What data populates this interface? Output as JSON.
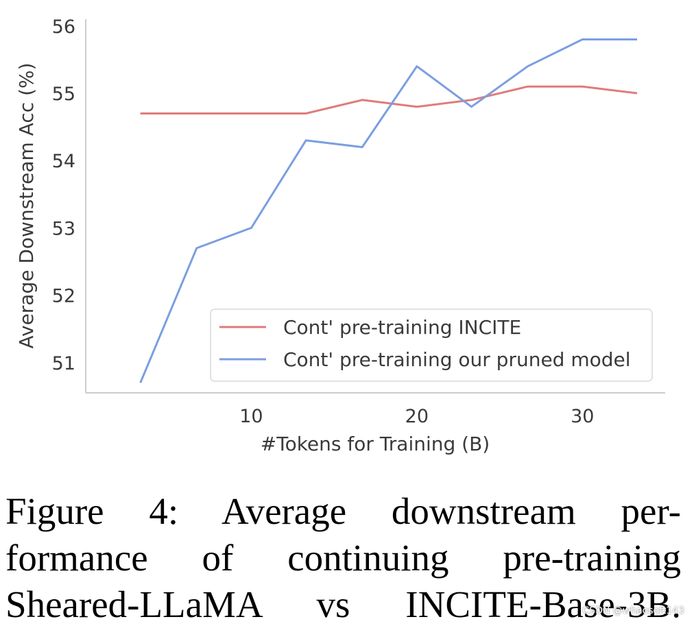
{
  "chart_data": {
    "type": "line",
    "title": "",
    "xlabel": "#Tokens for Training (B)",
    "ylabel": "Average Downstream Acc (%)",
    "xlim": [
      0,
      35
    ],
    "ylim": [
      50.55,
      56.1
    ],
    "xticks": [
      10,
      20,
      30
    ],
    "yticks": [
      51,
      52,
      53,
      54,
      55,
      56
    ],
    "grid": false,
    "legend_position": "lower-right",
    "series": [
      {
        "name": "Cont' pre-training INCITE",
        "color": "#e07b7b",
        "x": [
          3.3,
          6.7,
          10,
          13.3,
          16.7,
          20,
          23.3,
          26.7,
          30,
          33.3
        ],
        "y": [
          54.7,
          54.7,
          54.7,
          54.7,
          54.9,
          54.8,
          54.9,
          55.1,
          55.1,
          55.0
        ]
      },
      {
        "name": "Cont' pre-training our pruned model",
        "color": "#7b9ee0",
        "x": [
          3.3,
          6.7,
          10,
          13.3,
          16.7,
          20,
          23.3,
          26.7,
          30,
          33.3
        ],
        "y": [
          50.7,
          52.7,
          53.0,
          54.3,
          54.2,
          55.4,
          54.8,
          55.4,
          55.8,
          55.8
        ]
      }
    ]
  },
  "caption": "Figure 4:  Average downstream performance of continuing pre-training Sheared-LLaMA vs INCITE-Base-3B.",
  "caption_lines": [
    "Figure 4:  Average downstream per-",
    "formance of continuing pre-training",
    "Sheared-LLaMA vs INCITE-Base-3B."
  ],
  "watermark": "CSDN @whaosoft143"
}
